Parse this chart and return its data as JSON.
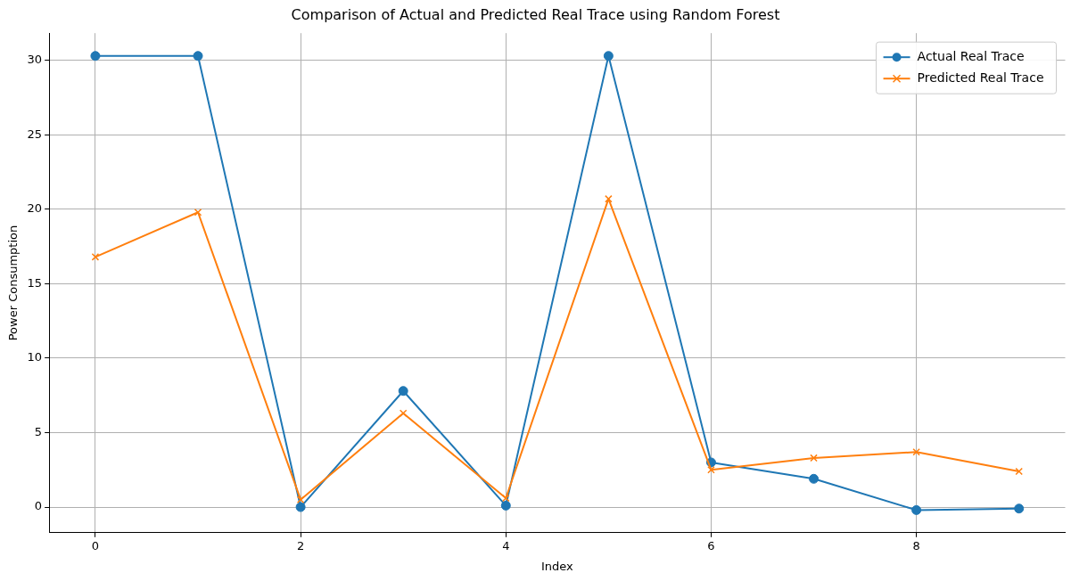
{
  "chart_data": {
    "type": "line",
    "title": "Comparison of Actual and Predicted Real Trace using Random Forest",
    "xlabel": "Index",
    "ylabel": "Power Consumption",
    "x": [
      0,
      1,
      2,
      3,
      4,
      5,
      6,
      7,
      8,
      9
    ],
    "series": [
      {
        "name": "Actual Real Trace",
        "color": "#1f77b4",
        "marker": "circle",
        "values": [
          30.3,
          30.3,
          0,
          7.8,
          0.1,
          30.3,
          3.0,
          1.9,
          -0.2,
          -0.1
        ]
      },
      {
        "name": "Predicted Real Trace",
        "color": "#ff7f0e",
        "marker": "cross",
        "values": [
          16.8,
          19.8,
          0.5,
          6.3,
          0.6,
          20.7,
          2.5,
          3.3,
          3.7,
          2.4
        ]
      }
    ],
    "xlim": [
      -0.45,
      9.45
    ],
    "xticks": [
      0,
      2,
      4,
      6,
      8
    ],
    "ylim": [
      -1.72,
      31.83
    ],
    "yticks": [
      0,
      5,
      10,
      15,
      20,
      25,
      30
    ],
    "grid": true,
    "legend": "top right",
    "line_style": "solid"
  }
}
